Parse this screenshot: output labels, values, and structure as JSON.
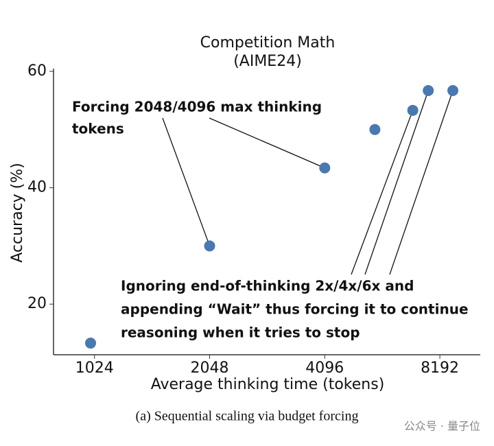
{
  "chart_data": {
    "type": "scatter",
    "title": [
      "Competition Math",
      "(AIME24)"
    ],
    "x_label": "Average thinking time (tokens)",
    "y_label": "Accuracy (%)",
    "x": [
      1000,
      2048,
      4096,
      5540,
      6960,
      7640,
      8860
    ],
    "values": [
      13.3,
      30.0,
      43.4,
      50.0,
      53.3,
      56.7,
      56.7
    ],
    "color": "#4a78b0",
    "xscale": "log2",
    "xlim": [
      800,
      10450
    ],
    "ylim": [
      11.3,
      60
    ],
    "xticks": [
      1024,
      2048,
      4096,
      8192
    ],
    "yticks": [
      20,
      40,
      60
    ],
    "grid": false,
    "annotations": [
      {
        "lines": [
          "Forcing 2048/4096 max thinking",
          "tokens"
        ]
      },
      {
        "lines": [
          "Ignoring end-of-thinking 2x/4x/6x and",
          "appending “Wait” thus forcing it to continue",
          "reasoning when it tries to stop"
        ]
      }
    ],
    "caption": "(a) Sequential scaling via budget forcing",
    "watermark": "公众号 · 量子位"
  }
}
